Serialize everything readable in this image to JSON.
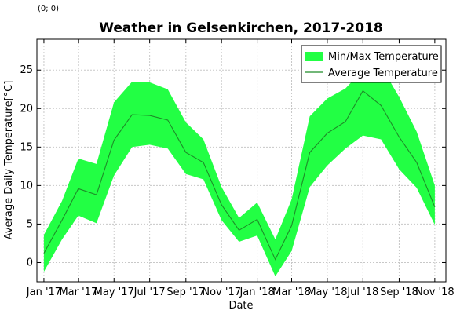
{
  "coordinate_readout": "(0; 0)",
  "chart_data": {
    "type": "area",
    "title": "Weather in Gelsenkirchen, 2017-2018",
    "xlabel": "Date",
    "ylabel": "Average Daily Temperature[°C]",
    "ylim": [
      -2.5,
      29
    ],
    "xlim": [
      "2016-12-20",
      "2018-11-20"
    ],
    "y_ticks": [
      0,
      5,
      10,
      15,
      20,
      25
    ],
    "x_ticks": [
      {
        "date": "2017-01-01",
        "label": "Jan '17"
      },
      {
        "date": "2017-03-01",
        "label": "Mar '17"
      },
      {
        "date": "2017-05-01",
        "label": "May '17"
      },
      {
        "date": "2017-07-01",
        "label": "Jul '17"
      },
      {
        "date": "2017-09-01",
        "label": "Sep '17"
      },
      {
        "date": "2017-11-01",
        "label": "Nov '17"
      },
      {
        "date": "2018-01-01",
        "label": "Jan '18"
      },
      {
        "date": "2018-03-01",
        "label": "Mar '18"
      },
      {
        "date": "2018-05-01",
        "label": "May '18"
      },
      {
        "date": "2018-07-01",
        "label": "Jul '18"
      },
      {
        "date": "2018-09-01",
        "label": "Sep '18"
      },
      {
        "date": "2018-11-01",
        "label": "Nov '18"
      }
    ],
    "grid": true,
    "legend_position": "top-right",
    "x": [
      "2017-01-01",
      "2017-02-01",
      "2017-03-01",
      "2017-04-01",
      "2017-05-01",
      "2017-06-01",
      "2017-07-01",
      "2017-08-01",
      "2017-09-01",
      "2017-10-01",
      "2017-11-01",
      "2017-12-01",
      "2018-01-01",
      "2018-02-01",
      "2018-03-01",
      "2018-04-01",
      "2018-05-01",
      "2018-06-01",
      "2018-07-01",
      "2018-08-01",
      "2018-09-01",
      "2018-10-01",
      "2018-11-01"
    ],
    "series": [
      {
        "name": "Min/Max Temperature",
        "kind": "band",
        "color": "#22ff44",
        "min": [
          -1.2,
          3.0,
          6.1,
          5.1,
          11.3,
          15.0,
          15.3,
          14.8,
          11.5,
          10.8,
          5.5,
          2.7,
          3.5,
          -1.8,
          1.5,
          9.8,
          12.6,
          14.8,
          16.5,
          16.0,
          12.1,
          9.7,
          4.9
        ],
        "max": [
          3.6,
          8.0,
          13.5,
          12.8,
          20.8,
          23.5,
          23.4,
          22.5,
          18.2,
          16.0,
          9.8,
          5.8,
          7.8,
          3.0,
          8.2,
          19.0,
          21.3,
          22.6,
          25.0,
          25.5,
          21.5,
          17.0,
          10.0
        ]
      },
      {
        "name": "Average Temperature",
        "kind": "line",
        "color": "#1e8c28",
        "values": [
          1.2,
          5.5,
          9.6,
          8.8,
          15.9,
          19.2,
          19.1,
          18.5,
          14.3,
          13.0,
          7.5,
          4.2,
          5.6,
          0.4,
          4.8,
          14.3,
          16.8,
          18.3,
          22.3,
          20.4,
          16.3,
          13.0,
          7.2
        ]
      }
    ]
  }
}
